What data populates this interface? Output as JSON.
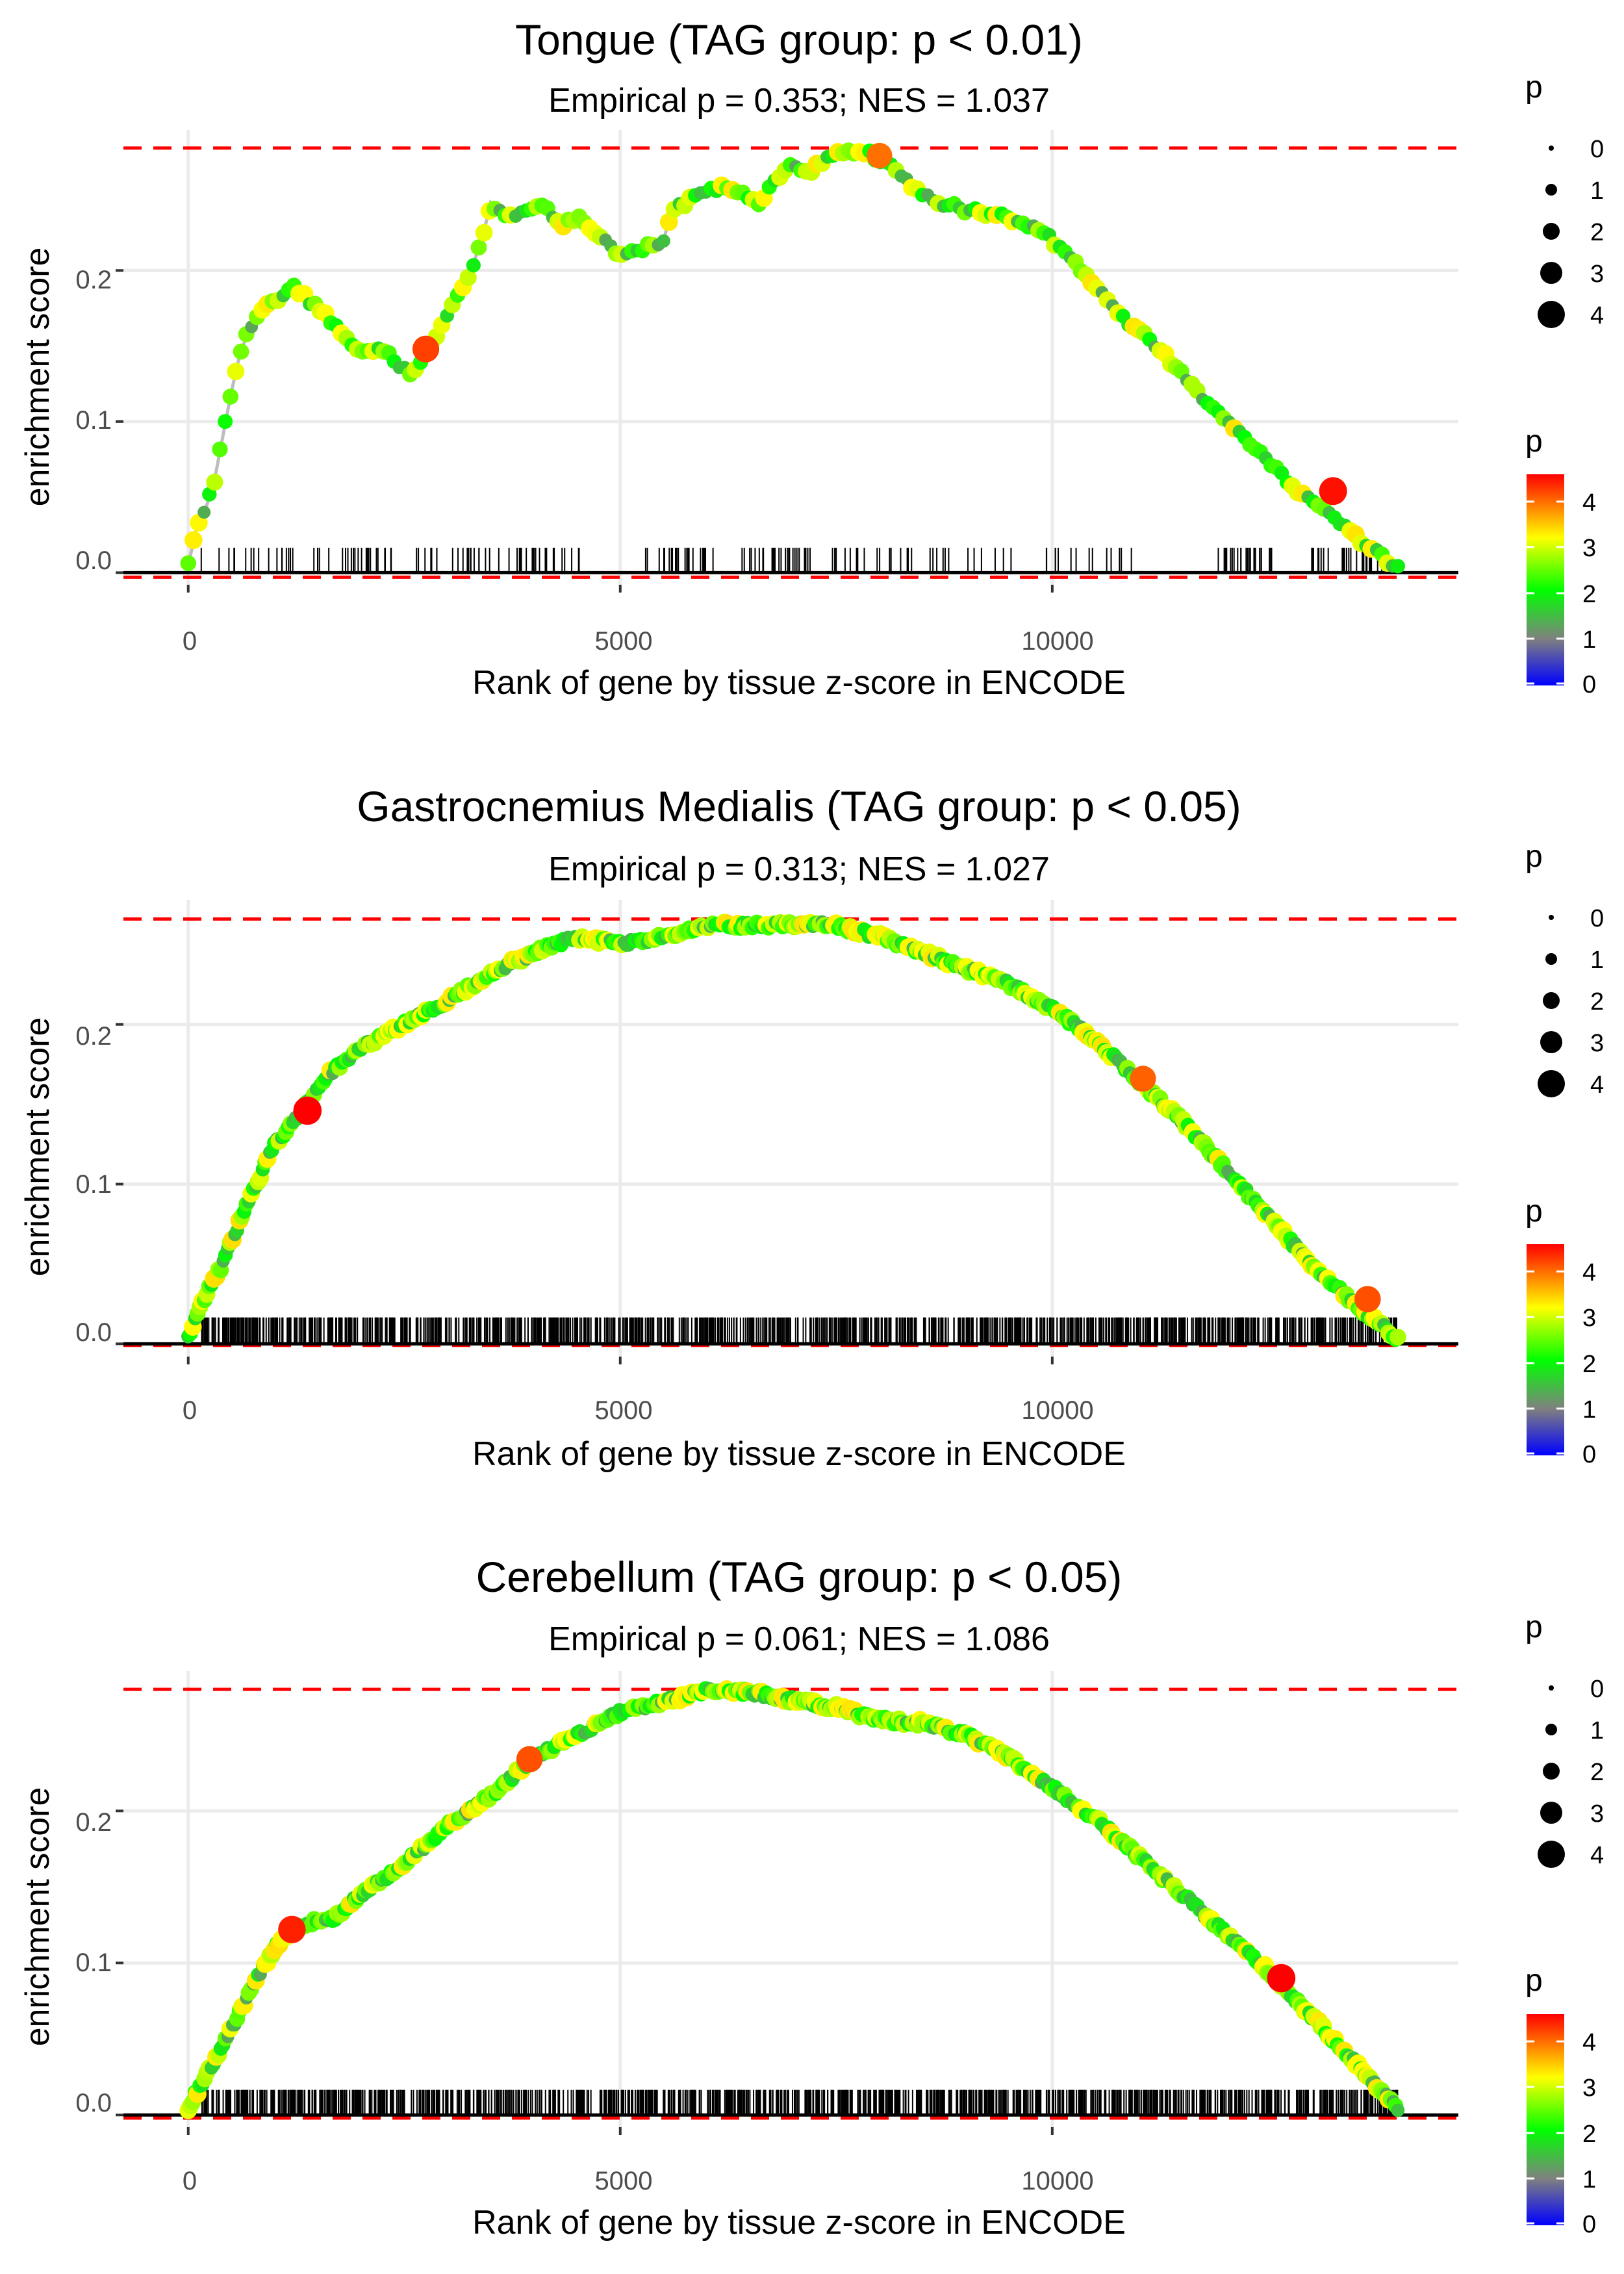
{
  "colors": {
    "ref_line": "#ff0000",
    "es_line": "#bdbdbd",
    "zero_line": "#000000",
    "gradient": [
      "#0000ff",
      "#808080",
      "#00ff00",
      "#ffff00",
      "#ff0000"
    ]
  },
  "chart_data": [
    {
      "type": "line",
      "title": "Tongue (TAG group: p < 0.01)",
      "subtitle": "Empirical p = 0.353; NES = 1.037",
      "xlabel": "Rank of gene by tissue z-score in ENCODE",
      "ylabel": "enrichment score",
      "xlim": [
        -750,
        14700
      ],
      "ylim": [
        -0.008,
        0.293
      ],
      "x_ticks": [
        0,
        5000,
        10000
      ],
      "x_tick_labels": [
        "0",
        "5000",
        "10000"
      ],
      "y_ticks": [
        0.0,
        0.1,
        0.2
      ],
      "y_tick_labels": [
        "0.0",
        "0.1",
        "0.2"
      ],
      "max_es": 0.281,
      "min_es": -0.003,
      "rug_density": "sparse",
      "curve": {
        "x": [
          0,
          100,
          200,
          300,
          400,
          500,
          600,
          700,
          800,
          900,
          1000,
          1100,
          1200,
          1600,
          2000,
          2200,
          2400,
          2600,
          2800,
          3000,
          3200,
          3400,
          3500,
          3700,
          3900,
          4100,
          4300,
          4500,
          5000,
          5300,
          5500,
          5600,
          5900,
          6200,
          6500,
          6600,
          6800,
          7000,
          7200,
          7400,
          7500,
          7800,
          8100,
          8400,
          8700,
          9000,
          9300,
          9600,
          9900,
          10200,
          10500,
          10800,
          11200,
          11600,
          12000,
          12400,
          12800,
          13200,
          13600,
          14000
        ],
        "y": [
          0.005,
          0.03,
          0.042,
          0.06,
          0.09,
          0.12,
          0.145,
          0.16,
          0.17,
          0.175,
          0.18,
          0.185,
          0.19,
          0.17,
          0.145,
          0.15,
          0.14,
          0.13,
          0.15,
          0.17,
          0.19,
          0.22,
          0.245,
          0.235,
          0.24,
          0.245,
          0.23,
          0.235,
          0.21,
          0.215,
          0.22,
          0.24,
          0.25,
          0.255,
          0.248,
          0.245,
          0.26,
          0.27,
          0.265,
          0.275,
          0.278,
          0.28,
          0.27,
          0.255,
          0.245,
          0.24,
          0.238,
          0.232,
          0.225,
          0.21,
          0.19,
          0.17,
          0.15,
          0.125,
          0.1,
          0.08,
          0.055,
          0.04,
          0.02,
          0.003
        ]
      },
      "highlighted_points": [
        {
          "x": 2750,
          "y": 0.148,
          "p": 4.2
        },
        {
          "x": 8000,
          "y": 0.276,
          "p": 3.9
        },
        {
          "x": 13250,
          "y": 0.054,
          "p": 4.5
        }
      ],
      "legend": {
        "size_title": "p",
        "size_labels": [
          "0",
          "1",
          "2",
          "3",
          "4"
        ],
        "color_title": "p",
        "color_labels": [
          "4",
          "3",
          "2",
          "1",
          "0"
        ]
      }
    },
    {
      "type": "line",
      "title": "Gastrocnemius Medialis (TAG group: p < 0.05)",
      "subtitle": "Empirical p = 0.313; NES = 1.027",
      "xlabel": "Rank of gene by tissue z-score in ENCODE",
      "ylabel": "enrichment score",
      "xlim": [
        -750,
        14700
      ],
      "ylim": [
        -0.008,
        0.278
      ],
      "x_ticks": [
        0,
        5000,
        10000
      ],
      "x_tick_labels": [
        "0",
        "5000",
        "10000"
      ],
      "y_ticks": [
        0.0,
        0.1,
        0.2
      ],
      "y_tick_labels": [
        "0.0",
        "0.1",
        "0.2"
      ],
      "max_es": 0.266,
      "min_es": -0.001,
      "rug_density": "dense",
      "curve": {
        "x": [
          0,
          200,
          400,
          700,
          1000,
          1300,
          1600,
          2000,
          2500,
          3000,
          3500,
          4000,
          4500,
          5000,
          5500,
          6000,
          6500,
          7000,
          7500,
          8000,
          8500,
          9000,
          9500,
          10000,
          10500,
          11000,
          11500,
          12000,
          12500,
          13000,
          13500,
          14000
        ],
        "y": [
          0.005,
          0.03,
          0.05,
          0.09,
          0.125,
          0.145,
          0.168,
          0.185,
          0.2,
          0.215,
          0.232,
          0.245,
          0.255,
          0.25,
          0.255,
          0.262,
          0.262,
          0.263,
          0.262,
          0.255,
          0.245,
          0.235,
          0.225,
          0.21,
          0.19,
          0.165,
          0.14,
          0.11,
          0.08,
          0.05,
          0.025,
          0.003
        ]
      },
      "highlighted_points": [
        {
          "x": 1380,
          "y": 0.146,
          "p": 4.6
        },
        {
          "x": 11050,
          "y": 0.166,
          "p": 4.0
        },
        {
          "x": 13650,
          "y": 0.028,
          "p": 4.1
        }
      ],
      "legend": {
        "size_title": "p",
        "size_labels": [
          "0",
          "1",
          "2",
          "3",
          "4"
        ],
        "color_title": "p",
        "color_labels": [
          "4",
          "3",
          "2",
          "1",
          "0"
        ]
      }
    },
    {
      "type": "line",
      "title": "Cerebellum (TAG group: p < 0.05)",
      "subtitle": "Empirical p = 0.061; NES = 1.086",
      "xlabel": "Rank of gene by tissue z-score in ENCODE",
      "ylabel": "enrichment score",
      "xlim": [
        -750,
        14700
      ],
      "ylim": [
        -0.008,
        0.292
      ],
      "x_ticks": [
        0,
        5000,
        10000
      ],
      "x_tick_labels": [
        "0",
        "5000",
        "10000"
      ],
      "y_ticks": [
        0.0,
        0.1,
        0.2
      ],
      "y_tick_labels": [
        "0.0",
        "0.1",
        "0.2"
      ],
      "max_es": 0.28,
      "min_es": -0.002,
      "rug_density": "dense",
      "curve": {
        "x": [
          0,
          200,
          400,
          700,
          1000,
          1300,
          1700,
          2000,
          2500,
          3000,
          3500,
          4000,
          4500,
          5000,
          5500,
          6000,
          6500,
          7000,
          7500,
          8000,
          8500,
          9000,
          9500,
          10000,
          10500,
          11000,
          11500,
          12000,
          12500,
          13000,
          13500,
          14000
        ],
        "y": [
          0.005,
          0.025,
          0.045,
          0.08,
          0.11,
          0.125,
          0.13,
          0.145,
          0.165,
          0.19,
          0.21,
          0.235,
          0.25,
          0.265,
          0.272,
          0.279,
          0.278,
          0.273,
          0.268,
          0.26,
          0.258,
          0.25,
          0.235,
          0.215,
          0.195,
          0.17,
          0.145,
          0.12,
          0.095,
          0.065,
          0.035,
          0.004
        ]
      },
      "highlighted_points": [
        {
          "x": 1200,
          "y": 0.122,
          "p": 4.4
        },
        {
          "x": 3950,
          "y": 0.234,
          "p": 4.1
        },
        {
          "x": 12650,
          "y": 0.09,
          "p": 4.6
        }
      ],
      "legend": {
        "size_title": "p",
        "size_labels": [
          "0",
          "1",
          "2",
          "3",
          "4"
        ],
        "color_title": "p",
        "color_labels": [
          "4",
          "3",
          "2",
          "1",
          "0"
        ]
      }
    }
  ]
}
